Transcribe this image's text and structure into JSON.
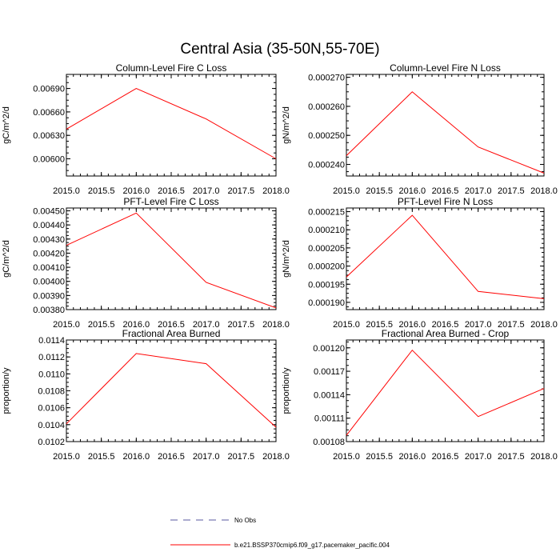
{
  "figure": {
    "title": "Central Asia (35-50N,55-70E)",
    "legend": [
      {
        "label": "No Obs",
        "color": "#5a5aa0",
        "style": "dashed"
      },
      {
        "label": "b.e21.BSSP370cmip6.f09_g17.pacemaker_pacific.004",
        "color": "#ff0000",
        "style": "solid"
      }
    ]
  },
  "chart_data": [
    {
      "type": "line",
      "title": "Column-Level Fire C Loss",
      "xlabel": "",
      "ylabel": "gC/m^2/d",
      "xlim": [
        2015.0,
        2018.0
      ],
      "ylim": [
        0.00578,
        0.00708
      ],
      "xticks": [
        "2015.0",
        "2015.5",
        "2016.0",
        "2016.5",
        "2017.0",
        "2017.5",
        "2018.0"
      ],
      "yticks": [
        {
          "v": 0.006,
          "label": "0.00600"
        },
        {
          "v": 0.0063,
          "label": "0.00630"
        },
        {
          "v": 0.0066,
          "label": "0.00660"
        },
        {
          "v": 0.0069,
          "label": "0.00690"
        }
      ],
      "x": [
        2015,
        2016,
        2017,
        2018
      ],
      "series": [
        {
          "values": [
            0.00638,
            0.0069,
            0.00651,
            0.006
          ],
          "color": "#ff0000"
        }
      ]
    },
    {
      "type": "line",
      "title": "Column-Level Fire N Loss",
      "xlabel": "",
      "ylabel": "gN/m^2/d",
      "xlim": [
        2015.0,
        2018.0
      ],
      "ylim": [
        0.000236,
        0.000271
      ],
      "xticks": [
        "2015.0",
        "2015.5",
        "2016.0",
        "2016.5",
        "2017.0",
        "2017.5",
        "2018.0"
      ],
      "yticks": [
        {
          "v": 0.00024,
          "label": "0.000240"
        },
        {
          "v": 0.00025,
          "label": "0.000250"
        },
        {
          "v": 0.00026,
          "label": "0.000260"
        },
        {
          "v": 0.00027,
          "label": "0.000270"
        }
      ],
      "x": [
        2015,
        2016,
        2017,
        2018
      ],
      "series": [
        {
          "values": [
            0.000243,
            0.000265,
            0.000246,
            0.000237
          ],
          "color": "#ff0000"
        }
      ]
    },
    {
      "type": "line",
      "title": "PFT-Level Fire C Loss",
      "xlabel": "",
      "ylabel": "gC/m^2/d",
      "xlim": [
        2015.0,
        2018.0
      ],
      "ylim": [
        0.0038,
        0.00452
      ],
      "xticks": [
        "2015.0",
        "2015.5",
        "2016.0",
        "2016.5",
        "2017.0",
        "2017.5",
        "2018.0"
      ],
      "yticks": [
        {
          "v": 0.0038,
          "label": "0.00380"
        },
        {
          "v": 0.0039,
          "label": "0.00390"
        },
        {
          "v": 0.004,
          "label": "0.00400"
        },
        {
          "v": 0.0041,
          "label": "0.00410"
        },
        {
          "v": 0.0042,
          "label": "0.00420"
        },
        {
          "v": 0.0043,
          "label": "0.00430"
        },
        {
          "v": 0.0044,
          "label": "0.00440"
        },
        {
          "v": 0.0045,
          "label": "0.00450"
        }
      ],
      "x": [
        2015,
        2016,
        2017,
        2018
      ],
      "series": [
        {
          "values": [
            0.004255,
            0.004484,
            0.003993,
            0.003812
          ],
          "color": "#ff0000"
        }
      ]
    },
    {
      "type": "line",
      "title": "PFT-Level Fire N Loss",
      "xlabel": "",
      "ylabel": "gN/m^2/d",
      "xlim": [
        2015.0,
        2018.0
      ],
      "ylim": [
        0.000188,
        0.000216
      ],
      "xticks": [
        "2015.0",
        "2015.5",
        "2016.0",
        "2016.5",
        "2017.0",
        "2017.5",
        "2018.0"
      ],
      "yticks": [
        {
          "v": 0.00019,
          "label": "0.000190"
        },
        {
          "v": 0.000195,
          "label": "0.000195"
        },
        {
          "v": 0.0002,
          "label": "0.000200"
        },
        {
          "v": 0.000205,
          "label": "0.000205"
        },
        {
          "v": 0.00021,
          "label": "0.000210"
        },
        {
          "v": 0.000215,
          "label": "0.000215"
        }
      ],
      "x": [
        2015,
        2016,
        2017,
        2018
      ],
      "series": [
        {
          "values": [
            0.000197,
            0.000214,
            0.000193,
            0.000191
          ],
          "color": "#ff0000"
        }
      ]
    },
    {
      "type": "line",
      "title": "Fractional Area Burned",
      "xlabel": "",
      "ylabel": "proportion/y",
      "xlim": [
        2015.0,
        2018.0
      ],
      "ylim": [
        0.0102,
        0.0114
      ],
      "xticks": [
        "2015.0",
        "2015.5",
        "2016.0",
        "2016.5",
        "2017.0",
        "2017.5",
        "2018.0"
      ],
      "yticks": [
        {
          "v": 0.0102,
          "label": "0.0102"
        },
        {
          "v": 0.0104,
          "label": "0.0104"
        },
        {
          "v": 0.0106,
          "label": "0.0106"
        },
        {
          "v": 0.0108,
          "label": "0.0108"
        },
        {
          "v": 0.011,
          "label": "0.0110"
        },
        {
          "v": 0.0112,
          "label": "0.0112"
        },
        {
          "v": 0.0114,
          "label": "0.0114"
        }
      ],
      "x": [
        2015,
        2016,
        2017,
        2018
      ],
      "series": [
        {
          "values": [
            0.01041,
            0.01124,
            0.01112,
            0.01037
          ],
          "color": "#ff0000"
        }
      ]
    },
    {
      "type": "line",
      "title": "Fractional Area Burned - Crop",
      "xlabel": "",
      "ylabel": "proportion/y",
      "xlim": [
        2015.0,
        2018.0
      ],
      "ylim": [
        0.00108,
        0.00121
      ],
      "xticks": [
        "2015.0",
        "2015.5",
        "2016.0",
        "2016.5",
        "2017.0",
        "2017.5",
        "2018.0"
      ],
      "yticks": [
        {
          "v": 0.00108,
          "label": "0.00108"
        },
        {
          "v": 0.00111,
          "label": "0.00111"
        },
        {
          "v": 0.00114,
          "label": "0.00114"
        },
        {
          "v": 0.00117,
          "label": "0.00117"
        },
        {
          "v": 0.0012,
          "label": "0.00120"
        }
      ],
      "x": [
        2015,
        2016,
        2017,
        2018
      ],
      "series": [
        {
          "values": [
            0.001088,
            0.001197,
            0.001112,
            0.001148
          ],
          "color": "#ff0000"
        }
      ]
    }
  ]
}
